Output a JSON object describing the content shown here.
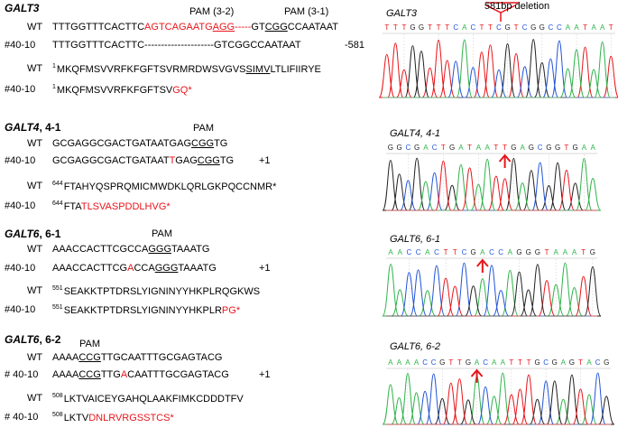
{
  "sections": [
    {
      "gene": "GALT3",
      "variant": "",
      "pam_labels": [
        "PAM (3-2)",
        "PAM (3-1)"
      ],
      "wt_label": "WT",
      "mut_label": "#40-10",
      "wt_dna": {
        "pre": "TTTGGTTTCACTTC",
        "red": "AGTCAGAATG",
        "red_u": "AGG",
        "red_dash": "-----",
        "mid": "GT",
        "u": "CGG",
        "post": "CCAATAAT"
      },
      "mut_dna": {
        "pre": "TTTGGTTTCACTTC",
        "dashes": "---------------------",
        "post": "GTCGGCCAATAAT"
      },
      "mutation": "-581",
      "prot_start": "1",
      "wt_prot": {
        "pre": "MKQFMSVVRFKFGFTSVRMRDWSVGVS",
        "u": "SIMV",
        "post": "LTLIFIIRYE"
      },
      "mut_prot": {
        "pre": "MKQFMSVVRFKFGFTSV",
        "red": "GQ*"
      }
    },
    {
      "gene": "GALT4",
      "variant": ", 4-1",
      "pam_labels": [
        "PAM"
      ],
      "wt_label": "WT",
      "mut_label": "#40-10",
      "wt_dna": {
        "pre": "GCGAGGCGACTGATAATGAG",
        "u": "CGG",
        "post": "TG"
      },
      "mut_dna": {
        "pre": "GCGAGGCGACTGATAAT",
        "red": "T",
        "mid": "GAG",
        "u": "CGG",
        "post": "TG"
      },
      "mutation": "+1",
      "prot_start": "644",
      "wt_prot": {
        "pre": "FTAHYQSPRQMICMWDKLQRLGKPQCCNMR*"
      },
      "mut_prot": {
        "pre": "FTA",
        "red": "TLSVASPDDLHVG*"
      }
    },
    {
      "gene": "GALT6",
      "variant": ", 6-1",
      "pam_labels": [
        "PAM"
      ],
      "wt_label": "WT",
      "mut_label": "#40-10",
      "wt_dna": {
        "pre": "AAACCACTTCGCCA",
        "u": "GGG",
        "post": "TAAATG"
      },
      "mut_dna": {
        "pre": "AAACCACTTCG",
        "red": "A",
        "mid": "CCA",
        "u": "GGG",
        "post": "TAAATG"
      },
      "mutation": "+1",
      "prot_start": "551",
      "wt_prot": {
        "pre": "SEAKKTPTDRSLYIGNINYYHKPLRQGKWS"
      },
      "mut_prot": {
        "pre": "SEAKKTPTDRSLYIGNINYYHKPLR",
        "red": "PG*"
      }
    },
    {
      "gene": "GALT6",
      "variant": ", 6-2",
      "pam_labels": [
        "PAM"
      ],
      "wt_label": "WT",
      "mut_label": "# 40-10",
      "wt_dna": {
        "pre": "AAAA",
        "u": "CCG",
        "post": "TTGCAATTTGCGAGTACG"
      },
      "mut_dna": {
        "pre": "AAAA",
        "u": "CCG",
        "mid": "TTG",
        "red": "A",
        "post": "CAATTTGCGAGTACG"
      },
      "mutation": "+1",
      "prot_start": "508",
      "wt_prot": {
        "pre": "LKTVAICEYGAHQLAAKFIMKCDDDTFV"
      },
      "mut_prot": {
        "pre": "LKTV",
        "red": "DNLRVRGSSTCS*"
      }
    }
  ],
  "chromatograms": [
    {
      "title": "GALT3",
      "deletion_label": "581bp deletion",
      "bases": "TTTGGTTTCACTTCGTCGGCCAATAAT",
      "marker": "bracket"
    },
    {
      "title": "GALT4, 4-1",
      "bases": "GGCGACTGATAATTGAGCGGTGAA",
      "marker": "arrow"
    },
    {
      "title": "GALT6, 6-1",
      "bases": "AACCACTTCGACCAGGGTAAATG",
      "marker": "arrow"
    },
    {
      "title": "GALT6, 6-2",
      "bases": "AAAACCGTTGACAATTTGCGAGTACG",
      "marker": "arrow"
    }
  ],
  "colors": {
    "A": "#2fb34a",
    "C": "#2255d8",
    "G": "#222222",
    "T": "#e8151b",
    "accent_red": "#e8151b"
  }
}
